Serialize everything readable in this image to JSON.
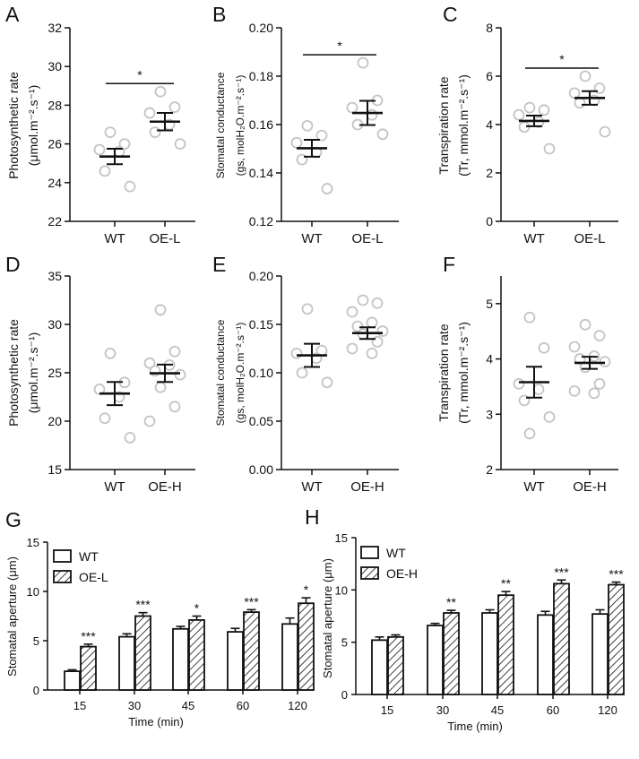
{
  "chart_data": [
    {
      "panel": "A",
      "type": "scatter",
      "ylabel": [
        "Photosynthetic rate",
        "(μmol.m⁻².s⁻¹)"
      ],
      "ylim": [
        22,
        32
      ],
      "yticks": [
        "22",
        "24",
        "26",
        "28",
        "30",
        "32"
      ],
      "categories": [
        "WT",
        "OE-L"
      ],
      "series": [
        {
          "name": "WT",
          "points": [
            26.6,
            26.0,
            25.7,
            25.6,
            24.6,
            23.8
          ],
          "mean": 25.35,
          "sem": 0.4
        },
        {
          "name": "OE-L",
          "points": [
            28.7,
            27.9,
            27.6,
            27.0,
            26.6,
            26.0
          ],
          "mean": 27.15,
          "sem": 0.45
        }
      ],
      "significance": "*"
    },
    {
      "panel": "B",
      "type": "scatter",
      "ylabel": [
        "Stomatal conductance",
        "(gs, molH₂O.m⁻².s⁻¹)"
      ],
      "ylim": [
        0.12,
        0.2
      ],
      "yticks": [
        "0.12",
        "0.14",
        "0.16",
        "0.18",
        "0.20"
      ],
      "categories": [
        "WT",
        "OE-L"
      ],
      "series": [
        {
          "name": "WT",
          "points": [
            0.1595,
            0.1555,
            0.1525,
            0.1485,
            0.1455,
            0.1335
          ],
          "mean": 0.1502,
          "sem": 0.0035
        },
        {
          "name": "OE-L",
          "points": [
            0.1855,
            0.17,
            0.167,
            0.164,
            0.16,
            0.156
          ],
          "mean": 0.1648,
          "sem": 0.005
        }
      ],
      "significance": "*"
    },
    {
      "panel": "C",
      "type": "scatter",
      "ylabel": [
        "Transpiration rate",
        "(Tr, mmol.m⁻².s⁻¹)"
      ],
      "ylim": [
        0,
        8
      ],
      "yticks": [
        "0",
        "2",
        "4",
        "6",
        "8"
      ],
      "categories": [
        "WT",
        "OE-L"
      ],
      "series": [
        {
          "name": "WT",
          "points": [
            4.7,
            4.6,
            4.4,
            4.1,
            3.9,
            3.0
          ],
          "mean": 4.15,
          "sem": 0.22
        },
        {
          "name": "OE-L",
          "points": [
            6.0,
            5.5,
            5.3,
            5.0,
            4.9,
            3.7
          ],
          "mean": 5.1,
          "sem": 0.28
        }
      ],
      "significance": "*"
    },
    {
      "panel": "D",
      "type": "scatter",
      "ylabel": [
        "Photosynthetic rate",
        "(μmol.m⁻².s⁻¹)"
      ],
      "ylim": [
        15,
        35
      ],
      "yticks": [
        "15",
        "20",
        "25",
        "30",
        "35"
      ],
      "categories": [
        "WT",
        "OE-H"
      ],
      "series": [
        {
          "name": "WT",
          "points": [
            27.0,
            24.0,
            23.3,
            22.5,
            20.3,
            18.3
          ],
          "mean": 22.85,
          "sem": 1.2
        },
        {
          "name": "OE-H",
          "points": [
            31.5,
            27.2,
            26.0,
            25.8,
            25.2,
            24.8,
            23.5,
            21.5,
            20.0
          ],
          "mean": 24.95,
          "sem": 0.9
        }
      ],
      "significance": ""
    },
    {
      "panel": "E",
      "type": "scatter",
      "ylabel": [
        "Stomatal conductance",
        "(gs, molH₂O.m⁻².s⁻¹)"
      ],
      "ylim": [
        0,
        0.2
      ],
      "yticks": [
        "0.00",
        "0.05",
        "0.10",
        "0.15",
        "0.20"
      ],
      "categories": [
        "WT",
        "OE-H"
      ],
      "series": [
        {
          "name": "WT",
          "points": [
            0.166,
            0.123,
            0.12,
            0.115,
            0.1,
            0.09
          ],
          "mean": 0.118,
          "sem": 0.012
        },
        {
          "name": "OE-H",
          "points": [
            0.175,
            0.172,
            0.163,
            0.152,
            0.148,
            0.143,
            0.14,
            0.132,
            0.125,
            0.12
          ],
          "mean": 0.141,
          "sem": 0.006
        }
      ],
      "significance": ""
    },
    {
      "panel": "F",
      "type": "scatter",
      "ylabel": [
        "Transpiration rate",
        "(Tr, mmol.m⁻².s⁻¹)"
      ],
      "ylim": [
        2,
        5.5
      ],
      "yticks": [
        "2",
        "3",
        "4",
        "5"
      ],
      "categories": [
        "WT",
        "OE-H"
      ],
      "series": [
        {
          "name": "WT",
          "points": [
            4.75,
            4.2,
            3.55,
            3.45,
            3.25,
            2.95,
            2.65
          ],
          "mean": 3.58,
          "sem": 0.28
        },
        {
          "name": "OE-H",
          "points": [
            4.62,
            4.42,
            4.22,
            4.05,
            4.0,
            3.95,
            3.85,
            3.55,
            3.42,
            3.38
          ],
          "mean": 3.93,
          "sem": 0.11
        }
      ],
      "significance": ""
    },
    {
      "panel": "G",
      "type": "bar",
      "ylabel": "Stomatal aperture (μm)",
      "xlabel": "Time (min)",
      "ylim": [
        0,
        15
      ],
      "yticks": [
        "0",
        "5",
        "10",
        "15"
      ],
      "categories": [
        "15",
        "30",
        "45",
        "60",
        "120"
      ],
      "legend": [
        "WT",
        "OE-L"
      ],
      "series": [
        {
          "name": "WT",
          "values": [
            1.9,
            5.4,
            6.2,
            5.9,
            6.7
          ],
          "sem": [
            0.15,
            0.3,
            0.25,
            0.35,
            0.6
          ]
        },
        {
          "name": "OE-L",
          "values": [
            4.4,
            7.5,
            7.1,
            7.9,
            8.8
          ],
          "sem": [
            0.25,
            0.35,
            0.4,
            0.25,
            0.55
          ]
        }
      ],
      "significance": [
        "***",
        "***",
        "*",
        "***",
        "*"
      ]
    },
    {
      "panel": "H",
      "type": "bar",
      "ylabel": "Stomatal aperture (μm)",
      "xlabel": "Time (min)",
      "ylim": [
        0,
        15
      ],
      "yticks": [
        "0",
        "5",
        "10",
        "15"
      ],
      "categories": [
        "15",
        "30",
        "45",
        "60",
        "120"
      ],
      "legend": [
        "WT",
        "OE-H"
      ],
      "series": [
        {
          "name": "WT",
          "values": [
            5.2,
            6.6,
            7.8,
            7.6,
            7.7
          ],
          "sem": [
            0.3,
            0.2,
            0.3,
            0.35,
            0.4
          ]
        },
        {
          "name": "OE-H",
          "values": [
            5.5,
            7.8,
            9.5,
            10.6,
            10.5
          ],
          "sem": [
            0.2,
            0.25,
            0.35,
            0.35,
            0.25
          ]
        }
      ],
      "significance": [
        "",
        "**",
        "**",
        "***",
        "***"
      ]
    }
  ]
}
